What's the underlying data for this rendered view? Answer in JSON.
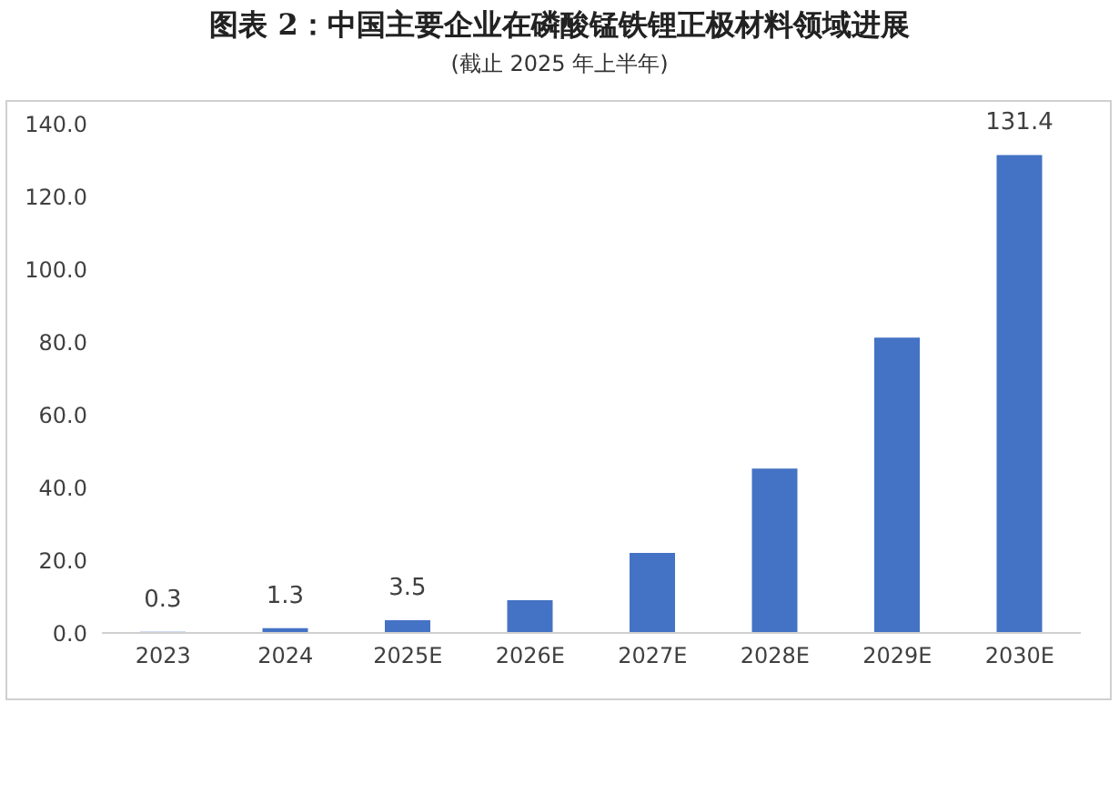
{
  "chart_data": {
    "type": "bar",
    "title": "图表 2：中国主要企业在磷酸锰铁锂正极材料领域进展",
    "subtitle": "(截止 2025 年上半年)",
    "categories": [
      "2023",
      "2024",
      "2025E",
      "2026E",
      "2027E",
      "2028E",
      "2029E",
      "2030E"
    ],
    "values": [
      0.3,
      1.3,
      3.5,
      9,
      22,
      45.2,
      81.2,
      131.4
    ],
    "value_labels": [
      "0.3",
      "1.3",
      "3.5",
      null,
      null,
      null,
      null,
      "131.4"
    ],
    "color": "#4472c4",
    "ylim": [
      0,
      140
    ],
    "yticks": [
      {
        "value": 0,
        "label": "0.0"
      },
      {
        "value": 20,
        "label": "20.0"
      },
      {
        "value": 40,
        "label": "40.0"
      },
      {
        "value": 60,
        "label": "60.0"
      },
      {
        "value": 80,
        "label": "80.0"
      },
      {
        "value": 100,
        "label": "100.0"
      },
      {
        "value": 120,
        "label": "120.0"
      },
      {
        "value": 140,
        "label": "140.0"
      }
    ],
    "grid": false,
    "legend": false
  }
}
